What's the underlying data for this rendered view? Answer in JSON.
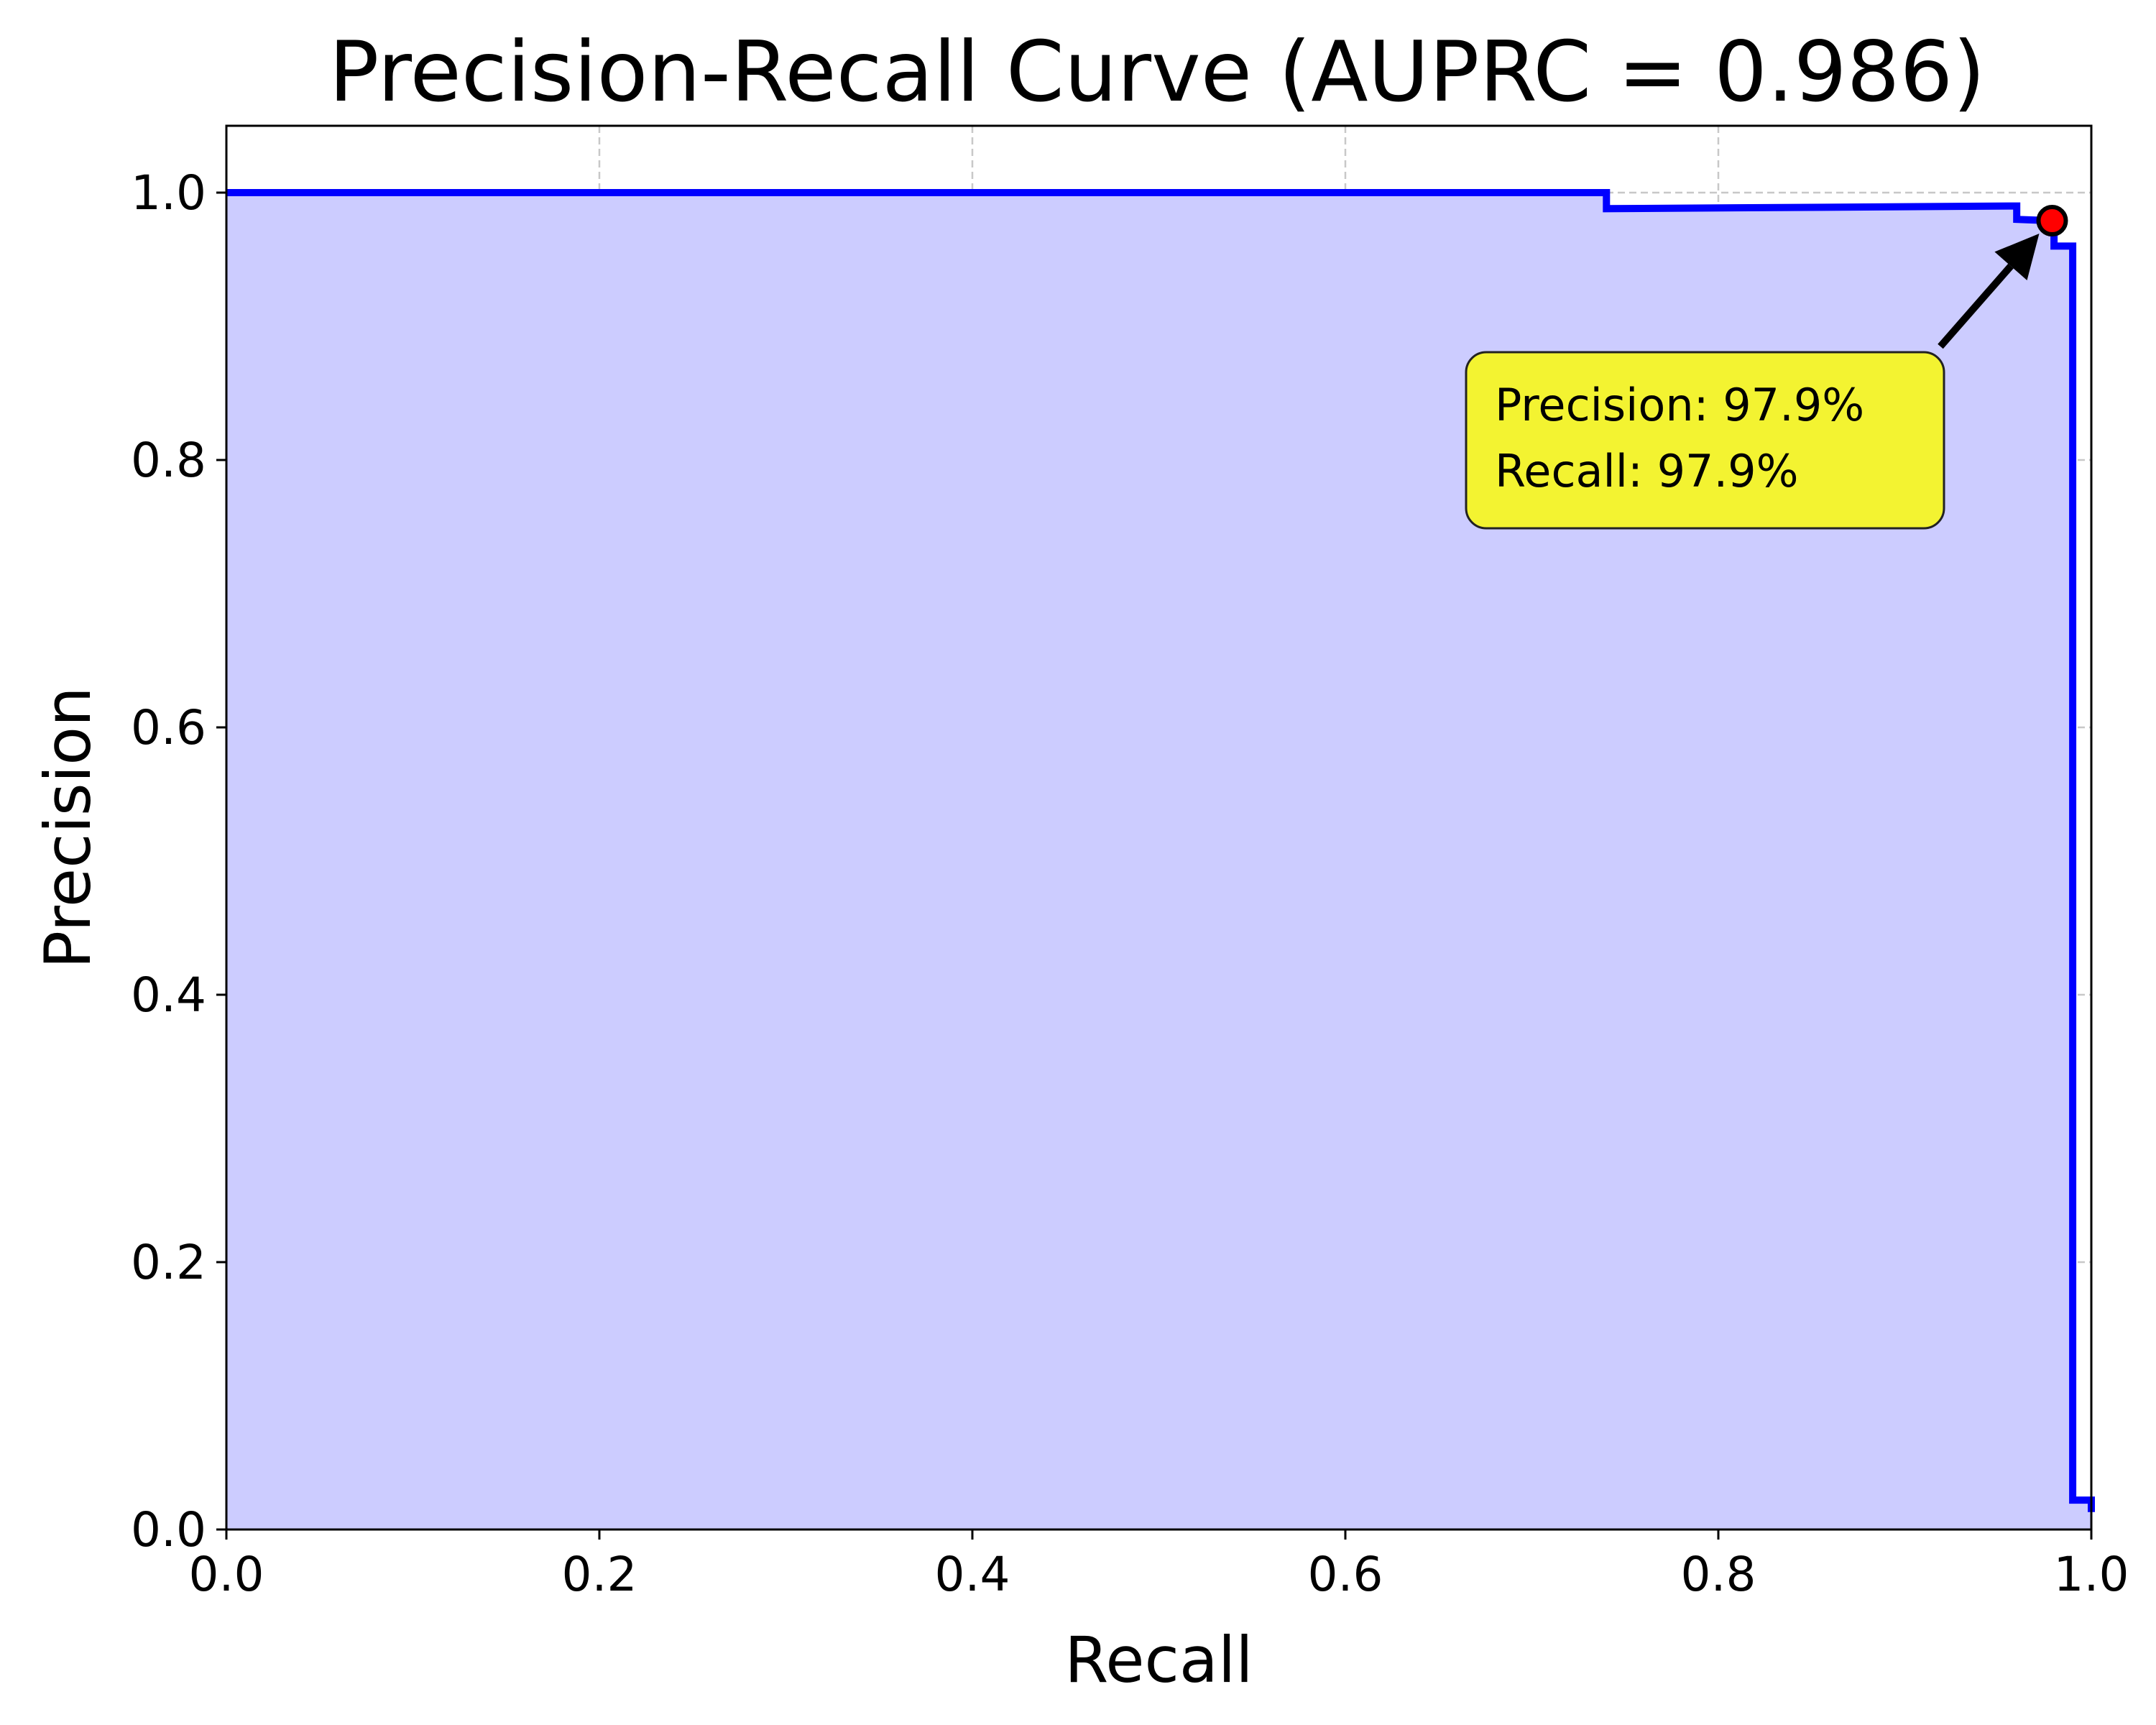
{
  "chart_data": {
    "type": "line",
    "title": "Precision-Recall Curve (AUPRC = 0.986)",
    "xlabel": "Recall",
    "ylabel": "Precision",
    "xlim": [
      0.0,
      1.0
    ],
    "ylim": [
      0.0,
      1.05
    ],
    "x_ticks": [
      "0.0",
      "0.2",
      "0.4",
      "0.6",
      "0.8",
      "1.0"
    ],
    "y_ticks": [
      "0.0",
      "0.2",
      "0.4",
      "0.6",
      "0.8",
      "1.0"
    ],
    "grid": true,
    "fill_under_curve": true,
    "colors": {
      "line": "#0000ff",
      "fill": "#ccccff",
      "marker": "#ff0000",
      "annotation_box": "#f3f331",
      "grid": "#c8c8c8"
    },
    "series": [
      {
        "points": [
          [
            0.0,
            1.0
          ],
          [
            0.74,
            1.0
          ],
          [
            0.74,
            0.988
          ],
          [
            0.96,
            0.99
          ],
          [
            0.96,
            0.98
          ],
          [
            0.979,
            0.979
          ],
          [
            0.979,
            0.97
          ],
          [
            0.98,
            0.97
          ],
          [
            0.98,
            0.96
          ],
          [
            0.99,
            0.96
          ],
          [
            0.99,
            0.022
          ],
          [
            1.0,
            0.022
          ],
          [
            1.0,
            0.013
          ]
        ]
      }
    ],
    "highlight_point": {
      "x": 0.979,
      "y": 0.979
    },
    "annotation": {
      "line1": "Precision: 97.9%",
      "line2": "Recall: 97.9%"
    }
  }
}
